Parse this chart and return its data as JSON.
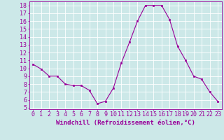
{
  "x": [
    0,
    1,
    2,
    3,
    4,
    5,
    6,
    7,
    8,
    9,
    10,
    11,
    12,
    13,
    14,
    15,
    16,
    17,
    18,
    19,
    20,
    21,
    22,
    23
  ],
  "y": [
    10.5,
    9.9,
    9.0,
    9.0,
    8.0,
    7.8,
    7.8,
    7.2,
    5.5,
    5.8,
    7.5,
    10.7,
    13.3,
    16.0,
    18.0,
    18.0,
    18.0,
    16.2,
    12.8,
    11.0,
    9.0,
    8.6,
    7.0,
    5.8
  ],
  "line_color": "#990099",
  "marker_color": "#990099",
  "bg_color": "#cce8e8",
  "grid_color": "#ffffff",
  "xlabel": "Windchill (Refroidissement éolien,°C)",
  "xlabel_color": "#990099",
  "ylim": [
    4.8,
    18.5
  ],
  "xlim": [
    -0.5,
    23.5
  ],
  "tick_color": "#990099",
  "font_size": 6.0,
  "xlabel_fontsize": 6.5
}
